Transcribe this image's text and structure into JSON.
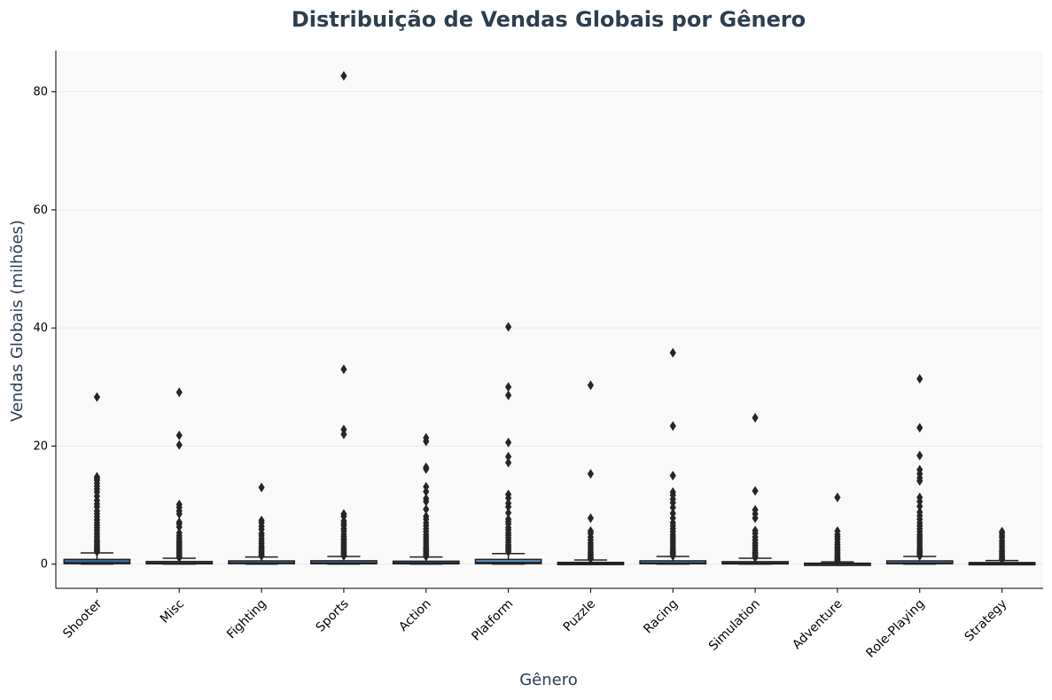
{
  "chart_data": {
    "type": "boxplot",
    "title": "Distribuição de Vendas Globais por Gênero",
    "xlabel": "Gênero",
    "ylabel": "Vendas Globais (milhões)",
    "ylim": [
      -4.1,
      87
    ],
    "yticks": [
      0,
      20,
      40,
      60,
      80
    ],
    "grid": "horizontal",
    "legend": "none",
    "colors": {
      "plot_background": "#f9f9f9",
      "title": "#2c3e50",
      "axis_label": "#2c3e50",
      "box_edge": "#1f1f1f",
      "grid": "#e6e6e6"
    },
    "categories": [
      "Shooter",
      "Misc",
      "Fighting",
      "Sports",
      "Action",
      "Platform",
      "Puzzle",
      "Racing",
      "Simulation",
      "Adventure",
      "Role-Playing",
      "Strategy"
    ],
    "box_colors": [
      "#3b6aa0",
      "#3b6aa0",
      "#5d8fc0",
      "#5d8fc0",
      "#3b6aa0",
      "#5d8fc0",
      "#3b6aa0",
      "#5d8fc0",
      "#3b6aa0",
      "#3b6aa0",
      "#5d8fc0",
      "#3b6aa0"
    ],
    "boxes": [
      {
        "min": 0.01,
        "q1": 0.08,
        "median": 0.24,
        "q3": 0.8,
        "max": 1.9
      },
      {
        "min": 0.01,
        "q1": 0.06,
        "median": 0.16,
        "q3": 0.45,
        "max": 1.0
      },
      {
        "min": 0.01,
        "q1": 0.08,
        "median": 0.21,
        "q3": 0.55,
        "max": 1.2
      },
      {
        "min": 0.01,
        "q1": 0.07,
        "median": 0.22,
        "q3": 0.57,
        "max": 1.3
      },
      {
        "min": 0.01,
        "q1": 0.06,
        "median": 0.19,
        "q3": 0.5,
        "max": 1.2
      },
      {
        "min": 0.01,
        "q1": 0.09,
        "median": 0.28,
        "q3": 0.8,
        "max": 1.8
      },
      {
        "min": 0.01,
        "q1": 0.04,
        "median": 0.11,
        "q3": 0.3,
        "max": 0.7
      },
      {
        "min": 0.01,
        "q1": 0.07,
        "median": 0.19,
        "q3": 0.56,
        "max": 1.3
      },
      {
        "min": 0.01,
        "q1": 0.05,
        "median": 0.15,
        "q3": 0.42,
        "max": 1.0
      },
      {
        "min": 0.01,
        "q1": 0.02,
        "median": 0.06,
        "q3": 0.16,
        "max": 0.38
      },
      {
        "min": 0.01,
        "q1": 0.07,
        "median": 0.19,
        "q3": 0.55,
        "max": 1.3
      },
      {
        "min": 0.01,
        "q1": 0.03,
        "median": 0.1,
        "q3": 0.27,
        "max": 0.6
      }
    ],
    "outliers": [
      [
        28.3,
        14.8,
        14.5,
        14.2,
        13.7,
        13.2,
        12.7,
        12.2,
        11.5,
        10.8,
        10.2,
        9.7,
        9.0,
        8.5,
        8.0,
        7.5,
        7.0,
        6.6,
        6.2,
        5.8,
        5.4,
        5.0,
        4.6,
        4.2,
        3.9,
        3.6,
        3.3,
        3.0,
        2.7,
        2.5,
        2.3,
        2.1
      ],
      [
        29.1,
        21.8,
        20.2,
        10.1,
        9.6,
        9.0,
        8.5,
        7.1,
        6.8,
        6.3,
        5.3,
        4.8,
        4.4,
        4.0,
        3.7,
        3.4,
        3.1,
        2.8,
        2.5,
        2.2,
        1.9,
        1.6,
        1.3,
        1.1
      ],
      [
        13.0,
        7.4,
        7.0,
        6.4,
        5.9,
        5.2,
        4.8,
        4.3,
        3.9,
        3.5,
        3.1,
        2.8,
        2.5,
        2.2,
        1.9,
        1.6,
        1.4
      ],
      [
        82.7,
        33.0,
        22.8,
        22.0,
        8.5,
        8.1,
        7.3,
        6.9,
        6.5,
        6.0,
        5.6,
        5.1,
        4.7,
        4.3,
        4.0,
        3.7,
        3.4,
        3.1,
        2.8,
        2.5,
        2.2,
        1.9,
        1.6,
        1.4
      ],
      [
        21.4,
        20.8,
        16.4,
        16.1,
        13.1,
        12.3,
        11.1,
        10.6,
        9.3,
        8.1,
        7.6,
        7.0,
        6.5,
        6.0,
        5.5,
        5.0,
        4.6,
        4.2,
        3.8,
        3.4,
        3.0,
        2.7,
        2.4,
        2.1,
        1.8,
        1.5,
        1.3
      ],
      [
        40.2,
        30.0,
        28.6,
        20.6,
        18.2,
        17.2,
        11.8,
        11.2,
        10.3,
        9.7,
        8.7,
        7.6,
        7.2,
        6.8,
        6.2,
        5.8,
        5.3,
        4.9,
        4.5,
        4.1,
        3.7,
        3.3,
        3.0,
        2.7,
        2.4,
        2.1
      ],
      [
        30.3,
        15.3,
        7.8,
        5.6,
        5.2,
        4.6,
        4.1,
        3.6,
        3.2,
        2.8,
        2.4,
        2.0,
        1.7,
        1.4,
        1.1,
        0.9
      ],
      [
        35.8,
        23.4,
        15.0,
        12.2,
        11.7,
        11.0,
        10.4,
        9.6,
        8.6,
        7.8,
        7.0,
        6.5,
        6.0,
        5.5,
        5.0,
        4.6,
        4.2,
        3.8,
        3.4,
        3.0,
        2.6,
        2.3,
        2.0,
        1.7,
        1.4
      ],
      [
        24.8,
        12.4,
        9.2,
        8.5,
        7.8,
        5.7,
        5.2,
        4.6,
        4.1,
        3.6,
        3.2,
        2.8,
        2.4,
        2.0,
        1.7,
        1.4,
        1.1
      ],
      [
        11.3,
        5.6,
        5.0,
        4.6,
        4.2,
        3.7,
        3.3,
        2.9,
        2.6,
        2.3,
        2.0,
        1.7,
        1.4,
        1.1,
        0.9,
        0.7,
        0.5
      ],
      [
        31.4,
        23.1,
        18.4,
        16.0,
        15.3,
        14.6,
        14.1,
        11.3,
        10.6,
        9.8,
        8.8,
        8.2,
        7.6,
        7.0,
        6.5,
        6.0,
        5.5,
        5.0,
        4.6,
        4.2,
        3.8,
        3.4,
        3.0,
        2.6,
        2.3,
        2.0,
        1.7,
        1.4
      ],
      [
        5.5,
        5.2,
        4.8,
        4.5,
        4.0,
        3.6,
        3.2,
        2.8,
        2.4,
        2.1,
        1.8,
        1.5,
        1.2,
        1.0,
        0.8
      ]
    ]
  }
}
